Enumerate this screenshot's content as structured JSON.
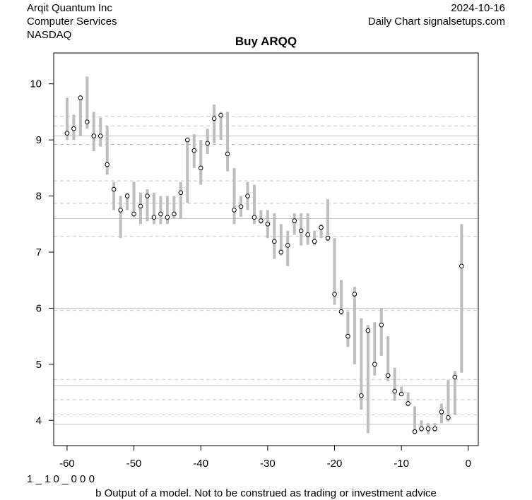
{
  "header": {
    "company": "Arqit Quantum Inc",
    "sector": "Computer Services",
    "exchange": "NASDAQ",
    "date": "2024-10-16",
    "source": "Daily Chart signalsetups.com"
  },
  "footer": {
    "code": "1 _ 1 0 _ 0 0 0",
    "disclaimer": "b Output of a model. Not to be construed as trading or investment advice"
  },
  "chart_data": {
    "type": "scatter",
    "title": "Buy ARQQ",
    "xlabel": "",
    "ylabel": "",
    "xlim": [
      -62,
      1.5
    ],
    "ylim": [
      3.55,
      10.55
    ],
    "x_ticks": [
      -60,
      -50,
      -40,
      -30,
      -20,
      -10,
      0
    ],
    "y_ticks": [
      4,
      5,
      6,
      7,
      8,
      9,
      10
    ],
    "grid": false,
    "colors": {
      "range_bar": "#bebebe",
      "solid_level": "#c0c0c0",
      "dashed_level": "#c8c8c8",
      "point": "#000000"
    },
    "solid_levels": [
      9.07,
      7.6,
      6.0,
      4.62,
      3.93
    ],
    "dashed_levels": [
      9.42,
      9.25,
      8.92,
      8.27,
      7.87,
      7.28,
      5.96,
      4.73,
      4.37,
      4.1
    ],
    "series": [
      {
        "x": [
          -60,
          -59,
          -58,
          -57,
          -56,
          -55,
          -54,
          -53,
          -52,
          -51,
          -50,
          -49,
          -48,
          -47,
          -46,
          -45,
          -44,
          -43,
          -42,
          -41,
          -40,
          -39,
          -38,
          -37,
          -36,
          -35,
          -34,
          -33,
          -32,
          -31,
          -30,
          -29,
          -28,
          -27,
          -26,
          -25,
          -24,
          -23,
          -22,
          -21,
          -20,
          -19,
          -18,
          -17,
          -16,
          -15,
          -14,
          -13,
          -12,
          -11,
          -10,
          -9,
          -8,
          -7,
          -6,
          -5,
          -4,
          -3,
          -2,
          -1
        ],
        "close": [
          9.12,
          9.2,
          9.75,
          9.32,
          9.07,
          9.07,
          8.56,
          8.12,
          7.75,
          8.0,
          7.68,
          7.82,
          8.0,
          7.62,
          7.68,
          7.62,
          7.68,
          8.06,
          9.0,
          8.81,
          8.5,
          8.94,
          9.38,
          9.44,
          8.75,
          7.75,
          7.81,
          8.0,
          7.62,
          7.56,
          7.5,
          7.19,
          7.0,
          7.12,
          7.56,
          7.38,
          7.31,
          7.19,
          7.44,
          7.25,
          6.25,
          5.94,
          5.5,
          6.25,
          4.44,
          5.6,
          5.0,
          5.7,
          4.8,
          4.52,
          4.47,
          4.3,
          3.8,
          3.85,
          3.85,
          3.85,
          4.15,
          4.05,
          4.77,
          6.75
        ],
        "high": [
          9.75,
          9.45,
          9.8,
          10.13,
          9.5,
          9.4,
          9.25,
          8.25,
          8.0,
          8.06,
          8.25,
          8.06,
          8.12,
          8.06,
          8.0,
          8.0,
          8.0,
          8.25,
          9.0,
          9.1,
          9.0,
          9.2,
          9.63,
          9.5,
          9.5,
          8.5,
          8.0,
          8.25,
          8.2,
          7.75,
          7.75,
          7.69,
          7.5,
          7.38,
          7.69,
          7.69,
          7.69,
          7.38,
          7.5,
          7.94,
          7.25,
          6.5,
          5.94,
          6.38,
          5.82,
          5.7,
          5.75,
          6.0,
          5.5,
          4.94,
          4.6,
          4.5,
          4.25,
          4.0,
          3.95,
          3.95,
          4.3,
          4.72,
          4.88,
          7.5
        ],
        "low": [
          9.0,
          9.0,
          9.07,
          9.2,
          8.8,
          8.88,
          8.38,
          7.75,
          7.25,
          7.75,
          7.62,
          7.5,
          7.55,
          7.5,
          7.5,
          7.5,
          7.6,
          7.6,
          7.88,
          8.5,
          8.2,
          8.75,
          8.94,
          9.0,
          8.44,
          7.5,
          7.63,
          7.75,
          7.5,
          7.5,
          7.25,
          6.88,
          6.94,
          6.75,
          7.31,
          7.12,
          7.13,
          7.12,
          7.25,
          7.2,
          6.06,
          5.88,
          5.31,
          5.0,
          4.19,
          3.77,
          4.8,
          5.15,
          4.7,
          4.35,
          4.45,
          4.25,
          3.75,
          3.8,
          3.75,
          3.8,
          3.95,
          3.98,
          4.1,
          4.85
        ]
      }
    ]
  }
}
